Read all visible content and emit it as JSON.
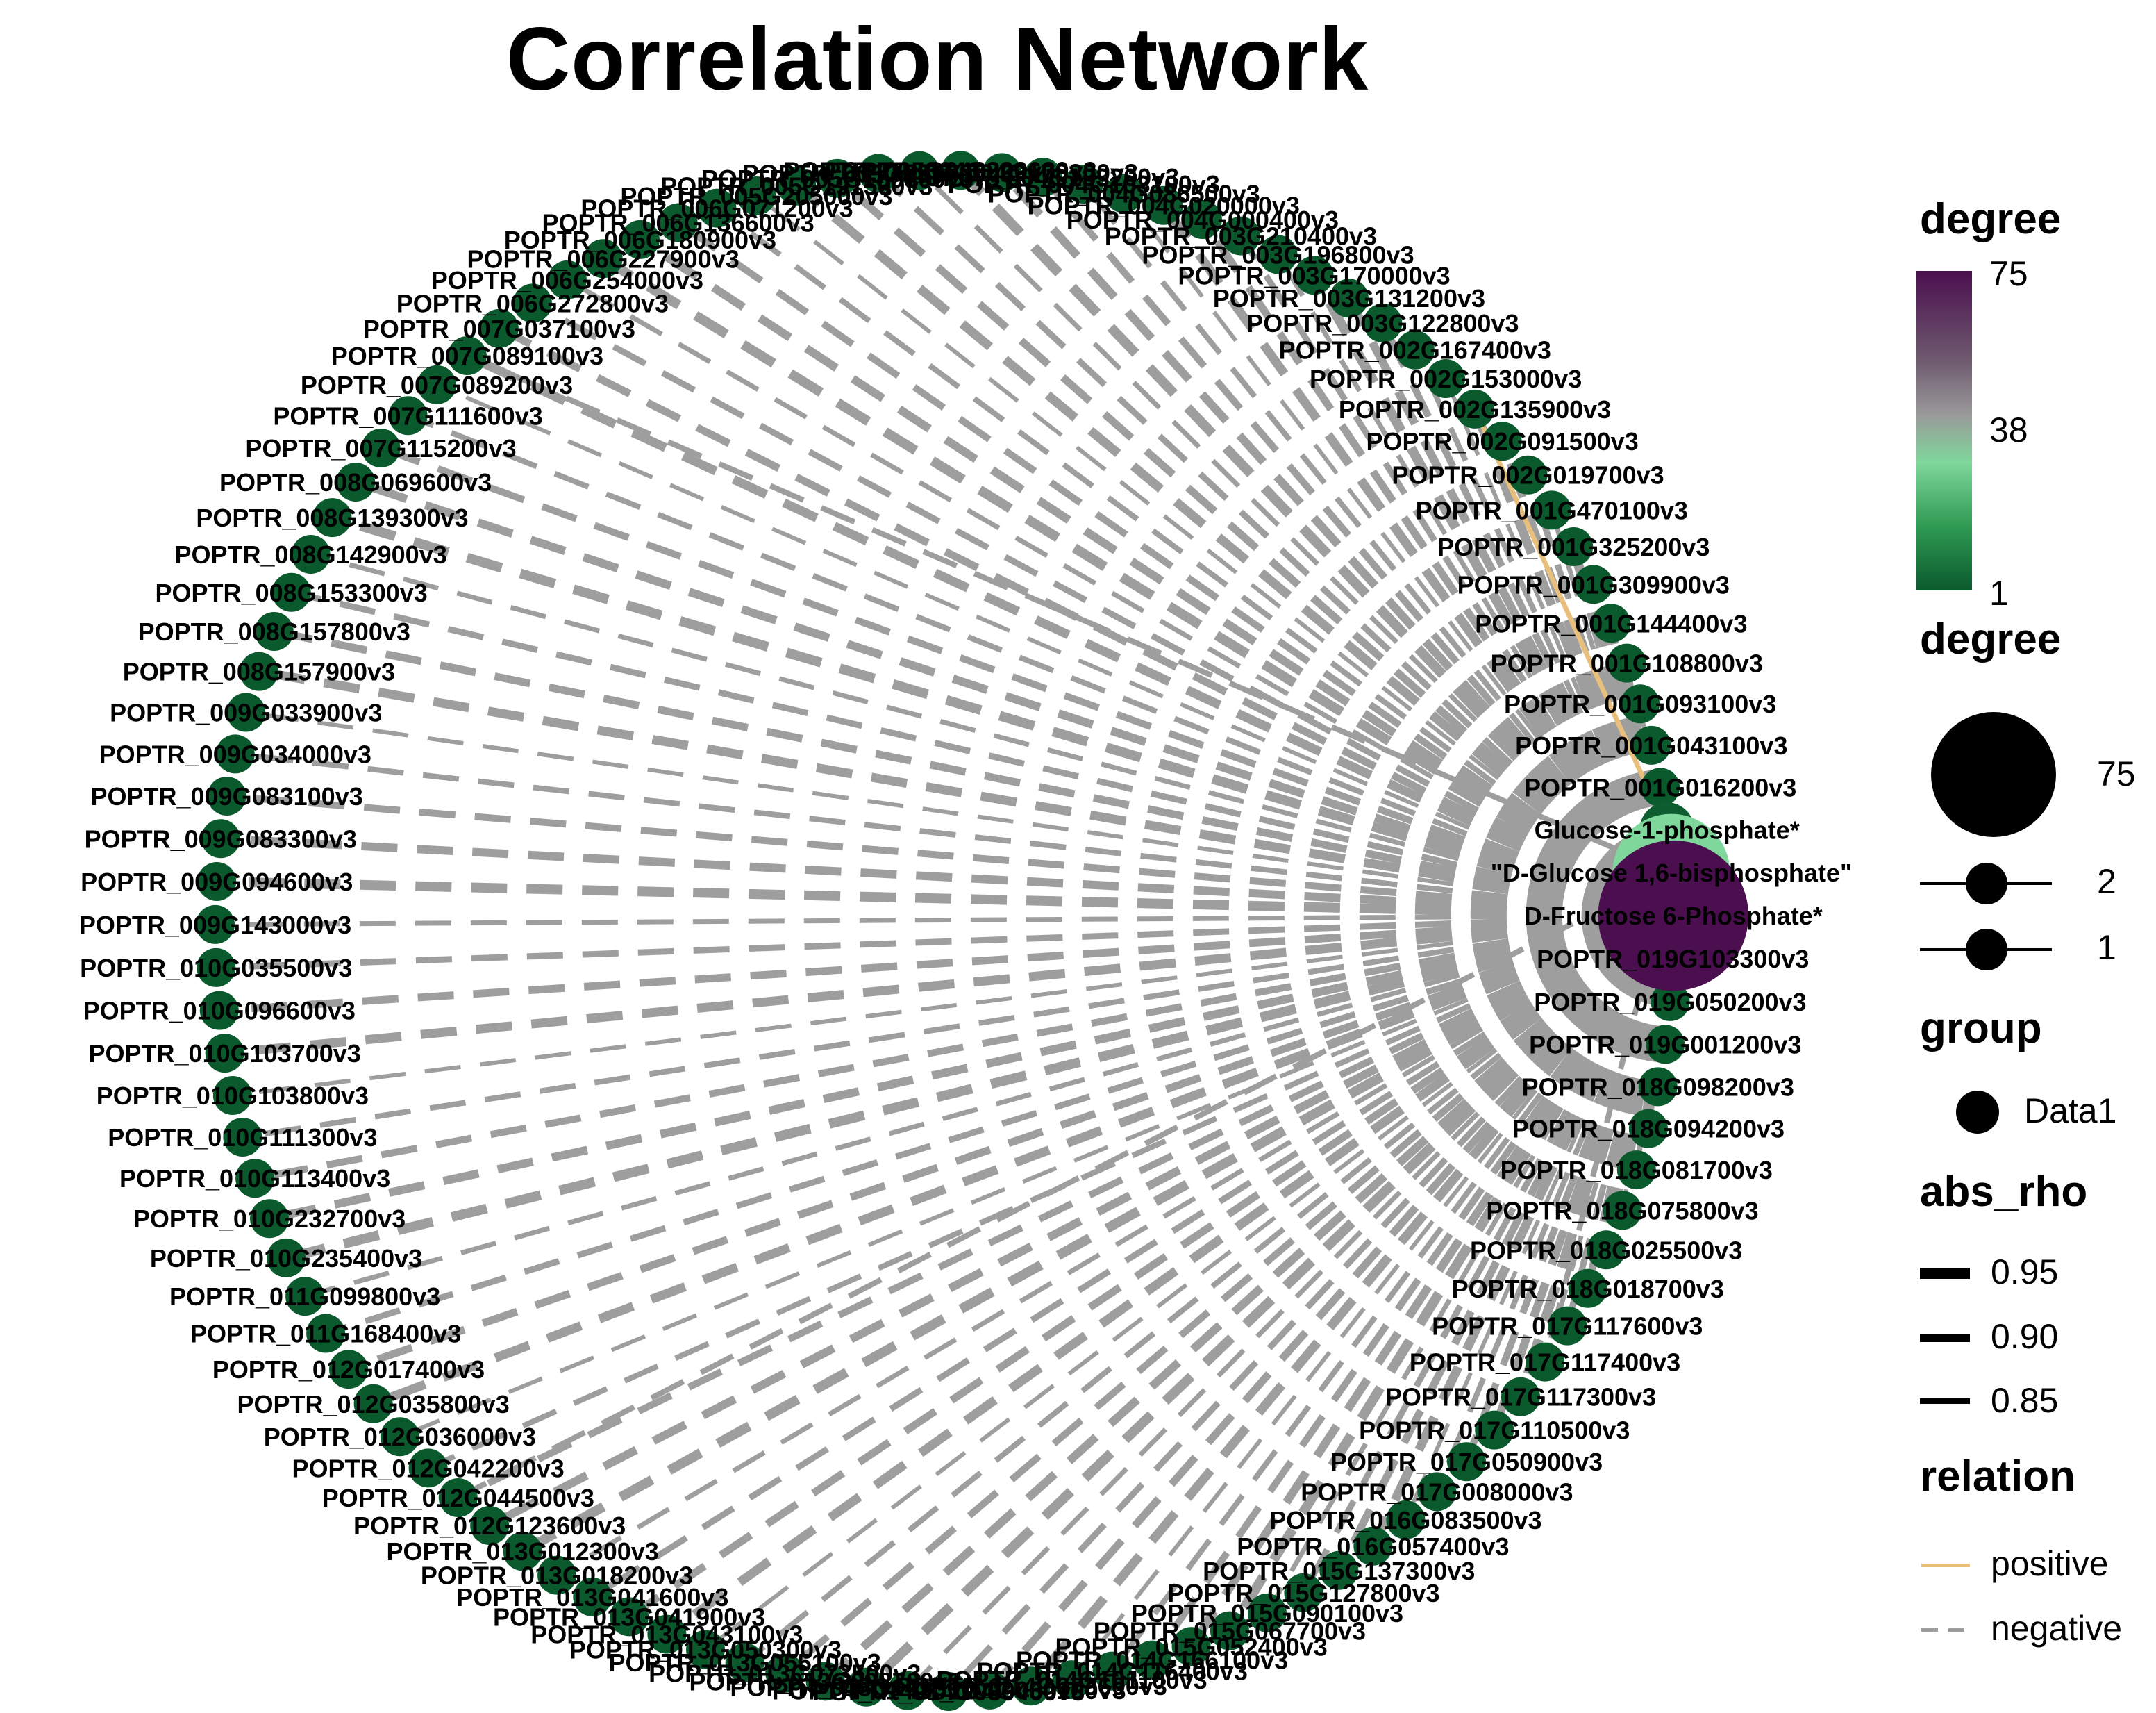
{
  "title": "Correlation Network",
  "colors": {
    "negative_edge": "#9e9e9e",
    "positive_edge": "#e8bf7d",
    "degree_low": "#0b5a2d",
    "degree_mid": "#7fd79b",
    "degree_high": "#4b0f4f"
  },
  "legend": {
    "color_title": "degree",
    "color_ticks": [
      "75",
      "38",
      "1"
    ],
    "size_title": "degree",
    "size_ticks": [
      "75",
      "2",
      "1"
    ],
    "group_title": "group",
    "group_items": [
      "Data1"
    ],
    "width_title": "abs_rho",
    "width_ticks": [
      "0.95",
      "0.90",
      "0.85"
    ],
    "relation_title": "relation",
    "relation_items": [
      "positive",
      "negative"
    ]
  },
  "hubs": [
    {
      "label": "Glucose-1-phosphate*",
      "degree": 2
    },
    {
      "label": "\"D-Glucose 1,6-bisphosphate\"",
      "degree": 38
    },
    {
      "label": "D-Fructose 6-Phosphate*",
      "degree": 75
    }
  ],
  "genes": [
    "POPTR_019G103300v3",
    "POPTR_019G050200v3",
    "POPTR_019G001200v3",
    "POPTR_018G098200v3",
    "POPTR_018G094200v3",
    "POPTR_018G081700v3",
    "POPTR_018G075800v3",
    "POPTR_018G025500v3",
    "POPTR_018G018700v3",
    "POPTR_017G117600v3",
    "POPTR_017G117400v3",
    "POPTR_017G117300v3",
    "POPTR_017G110500v3",
    "POPTR_017G050900v3",
    "POPTR_017G008000v3",
    "POPTR_016G083500v3",
    "POPTR_016G057400v3",
    "POPTR_015G137300v3",
    "POPTR_015G127800v3",
    "POPTR_015G090100v3",
    "POPTR_015G067700v3",
    "POPTR_015G052400v3",
    "POPTR_014G166100v3",
    "POPTR_014G116400v3",
    "POPTR_014G101100v3",
    "POPTR_014G073600v3",
    "POPTR_014G060100v3",
    "POPTR_014G039400v3",
    "POPTR_014G011000v3",
    "POPTR_013G145300v3",
    "POPTR_013G098700v3",
    "POPTR_013G073500v3",
    "POPTR_013G055100v3",
    "POPTR_013G050300v3",
    "POPTR_013G043100v3",
    "POPTR_013G041900v3",
    "POPTR_013G041600v3",
    "POPTR_013G018200v3",
    "POPTR_013G012300v3",
    "POPTR_012G123600v3",
    "POPTR_012G044500v3",
    "POPTR_012G042200v3",
    "POPTR_012G036000v3",
    "POPTR_012G035800v3",
    "POPTR_012G017400v3",
    "POPTR_011G168400v3",
    "POPTR_011G099800v3",
    "POPTR_010G235400v3",
    "POPTR_010G232700v3",
    "POPTR_010G113400v3",
    "POPTR_010G111300v3",
    "POPTR_010G103800v3",
    "POPTR_010G103700v3",
    "POPTR_010G096600v3",
    "POPTR_010G035500v3",
    "POPTR_009G143000v3",
    "POPTR_009G094600v3",
    "POPTR_009G083300v3",
    "POPTR_009G083100v3",
    "POPTR_009G034000v3",
    "POPTR_009G033900v3",
    "POPTR_008G157900v3",
    "POPTR_008G157800v3",
    "POPTR_008G153300v3",
    "POPTR_008G142900v3",
    "POPTR_008G139300v3",
    "POPTR_008G069600v3",
    "POPTR_007G115200v3",
    "POPTR_007G111600v3",
    "POPTR_007G089200v3",
    "POPTR_007G089100v3",
    "POPTR_007G037100v3",
    "POPTR_006G272800v3",
    "POPTR_006G254000v3",
    "POPTR_006G227900v3",
    "POPTR_006G180900v3",
    "POPTR_006G136600v3",
    "POPTR_006G071200v3",
    "POPTR_005G205000v3",
    "POPTR_005G191500v3",
    "POPTR_005G159300v3",
    "POPTR_005G099700v3",
    "POPTR_005G046800v3",
    "POPTR_004G229600v3",
    "POPTR_004G178300v3",
    "POPTR_004G133200v3",
    "POPTR_004G103100v3",
    "POPTR_004G086500v3",
    "POPTR_004G020000v3",
    "POPTR_004G000400v3",
    "POPTR_003G210400v3",
    "POPTR_003G196800v3",
    "POPTR_003G170000v3",
    "POPTR_003G131200v3",
    "POPTR_003G122800v3",
    "POPTR_002G167400v3",
    "POPTR_002G153000v3",
    "POPTR_002G135900v3",
    "POPTR_002G091500v3",
    "POPTR_002G019700v3",
    "POPTR_001G470100v3",
    "POPTR_001G325200v3",
    "POPTR_001G309900v3",
    "POPTR_001G144400v3",
    "POPTR_001G108800v3",
    "POPTR_001G093100v3",
    "POPTR_001G043100v3",
    "POPTR_001G016200v3"
  ]
}
